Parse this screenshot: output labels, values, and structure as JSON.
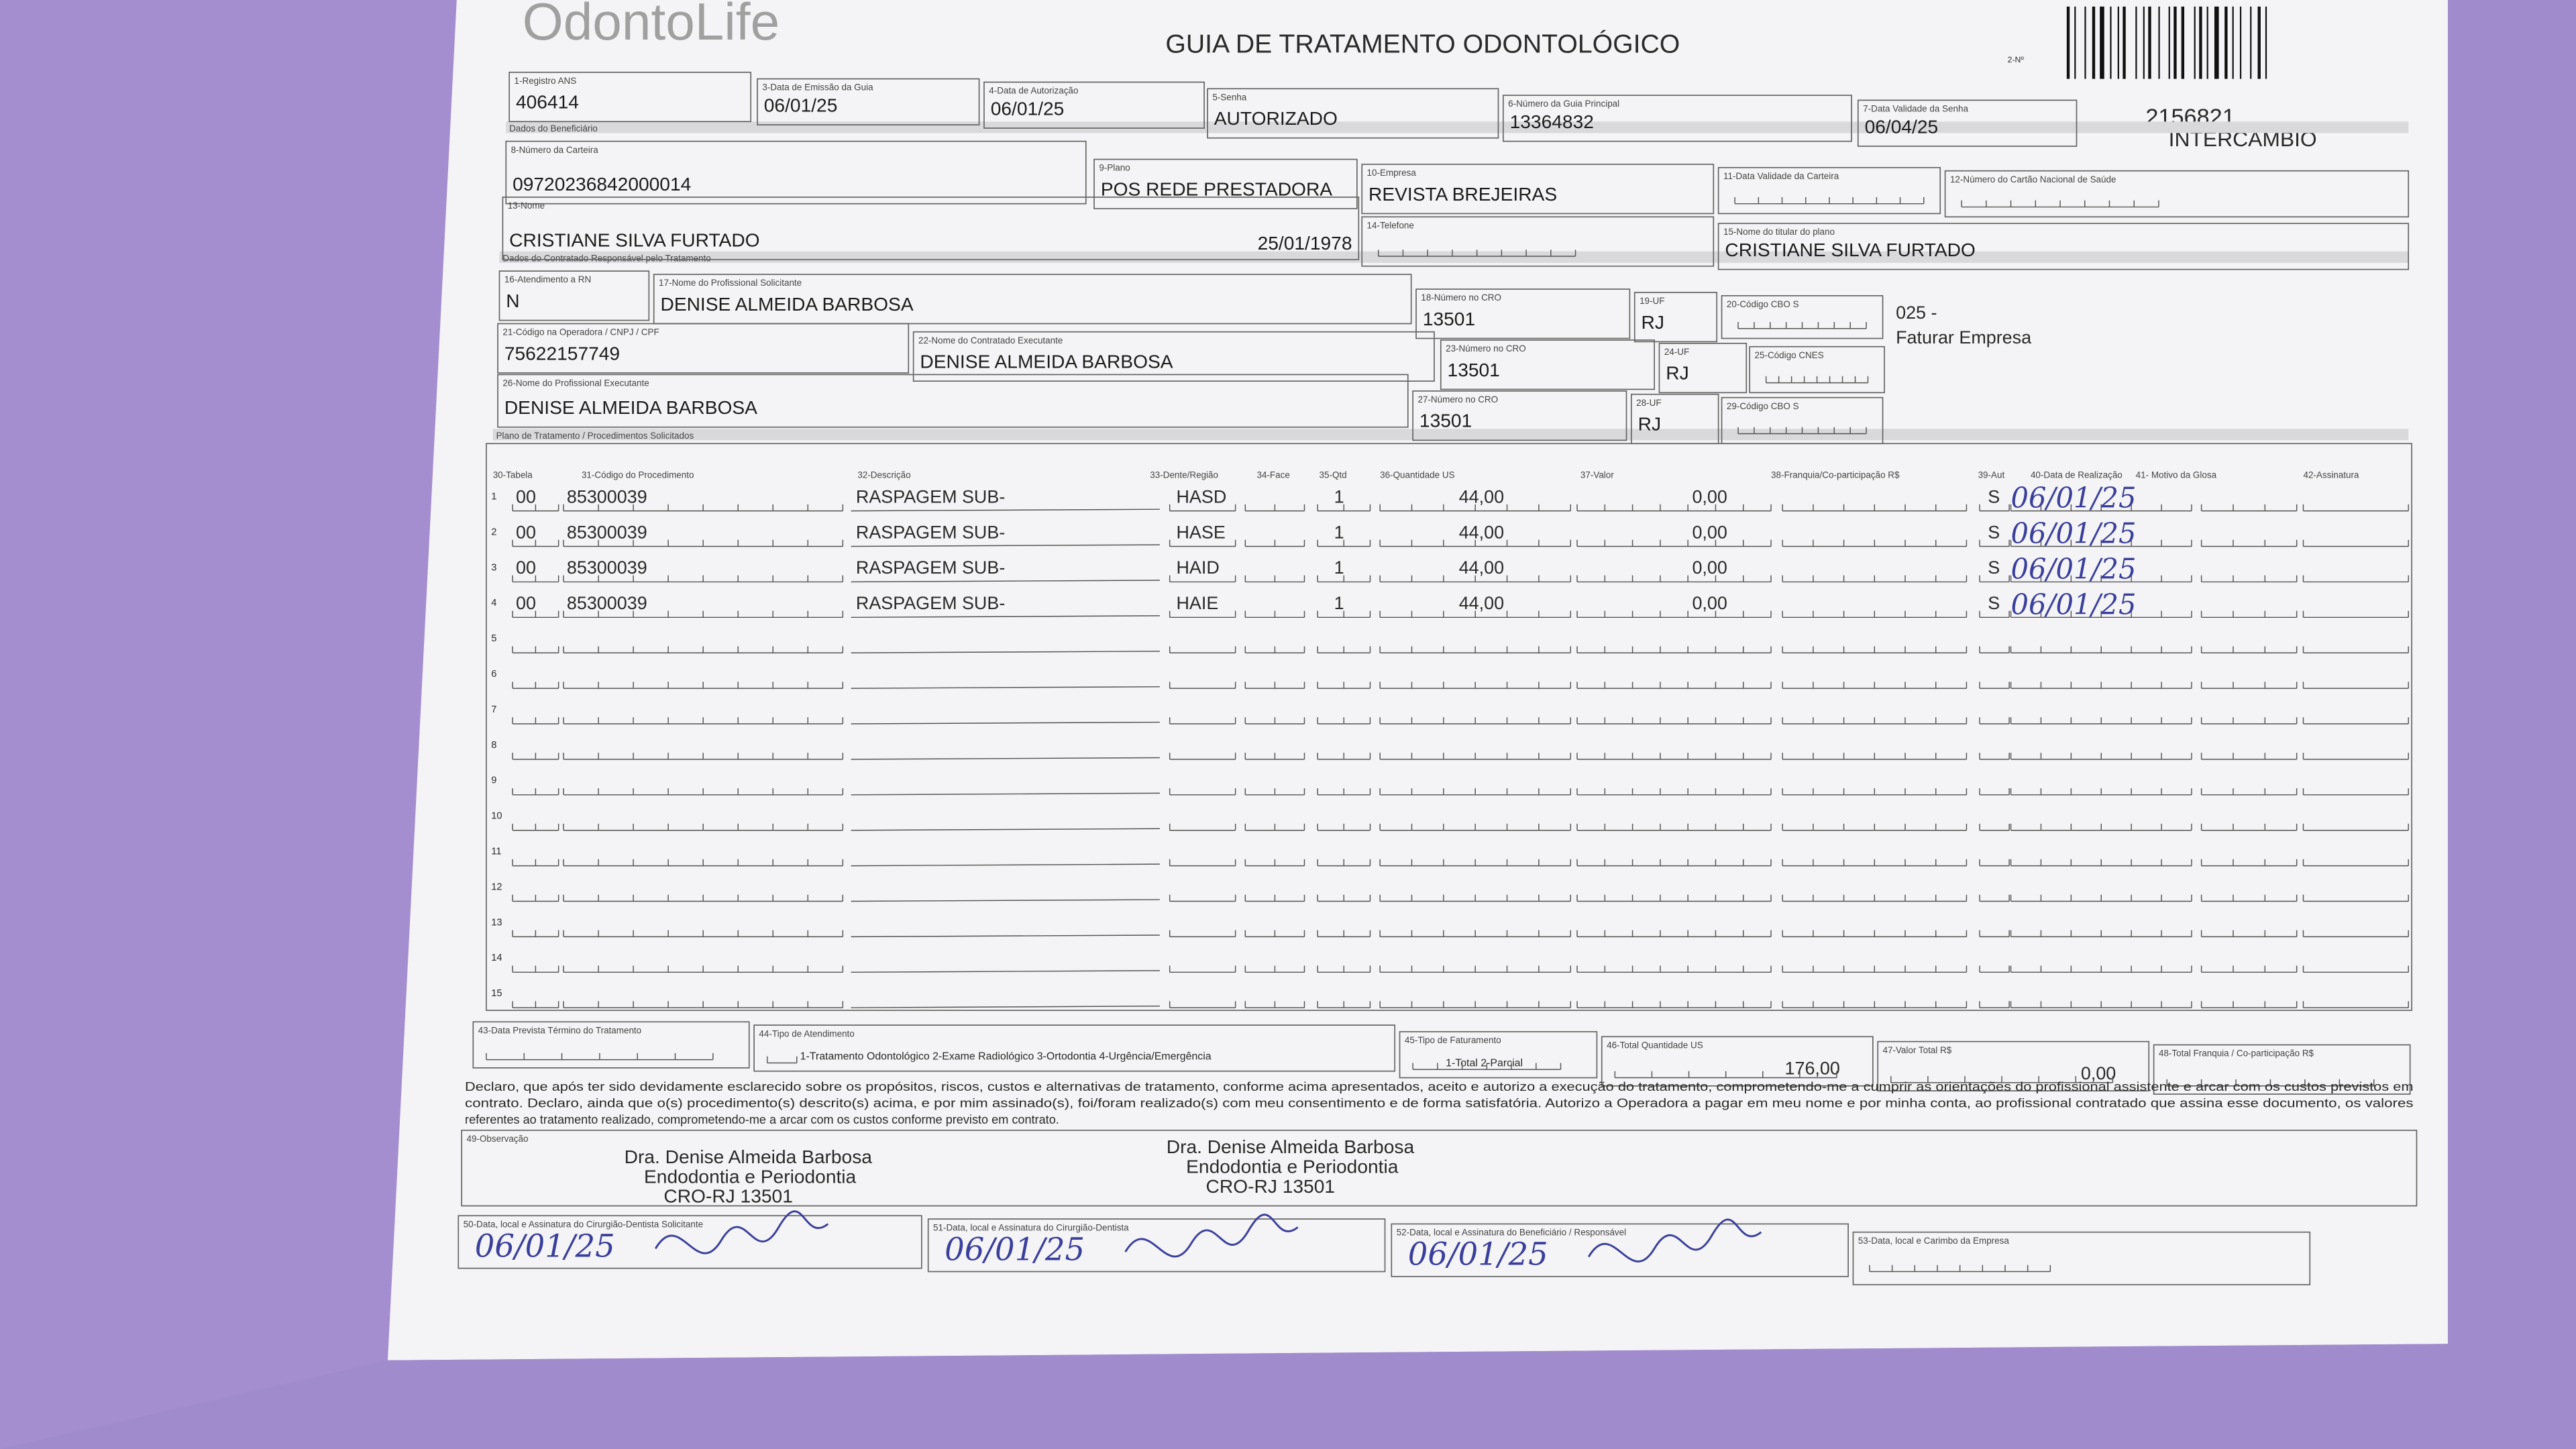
{
  "header": {
    "logo": "OdontoLife",
    "title": "GUIA DE TRATAMENTO ODONTOLÓGICO",
    "copy_no": "2-Nº",
    "guide_number": "2156821",
    "category": "INTERCÂMBIO"
  },
  "sections": [
    "Dados do Beneficiário",
    "Dados do Contratado Responsável pelo Tratamento",
    "Plano de Tratamento / Procedimentos Solicitados"
  ],
  "fields": [
    {
      "label": "1-Registro ANS",
      "value": "406414"
    },
    {
      "label": "3-Data de Emissão da Guia",
      "value": "06/01/25"
    },
    {
      "label": "4-Data de Autorização",
      "value": "06/01/25"
    },
    {
      "label": "5-Senha",
      "value": "AUTORIZADO"
    },
    {
      "label": "6-Número da Guia Principal",
      "value": "13364832"
    },
    {
      "label": "7-Data Validade da Senha",
      "value": "06/04/25"
    },
    {
      "label": "8-Número da Carteira",
      "value": "09720236842000014"
    },
    {
      "label": "9-Plano",
      "value": "POS REDE PRESTADORA"
    },
    {
      "label": "10-Empresa",
      "value": "REVISTA BREJEIRAS"
    },
    {
      "label": "11-Data Validade da Carteira"
    },
    {
      "label": "12-Número do Cartão Nacional de Saúde"
    },
    {
      "label": "13-Nome",
      "value": "CRISTIANE SILVA FURTADO",
      "extra": "25/01/1978"
    },
    {
      "label": "14-Telefone"
    },
    {
      "label": "15-Nome do titular do plano",
      "value": "CRISTIANE SILVA FURTADO"
    },
    {
      "label": "16-Atendimento a RN",
      "value": "N"
    },
    {
      "label": "17-Nome do Profissional Solicitante",
      "value": "DENISE ALMEIDA BARBOSA"
    },
    {
      "label": "18-Número no CRO",
      "value": "13501"
    },
    {
      "label": "19-UF",
      "value": "RJ"
    },
    {
      "label": "20-Código CBO S"
    },
    {
      "label": "21-Código na Operadora / CNPJ / CPF",
      "value": "75622157749"
    },
    {
      "label": "22-Nome do Contratado Executante",
      "value": "DENISE ALMEIDA BARBOSA"
    },
    {
      "label": "23-Número no CRO",
      "value": "13501"
    },
    {
      "label": "24-UF",
      "value": "RJ"
    },
    {
      "label": "25-Código CNES"
    },
    {
      "label": "26-Nome do Profissional Executante",
      "value": "DENISE ALMEIDA BARBOSA"
    },
    {
      "label": "27-Número no CRO",
      "value": "13501"
    },
    {
      "label": "28-UF",
      "value": "RJ"
    },
    {
      "label": "29-Código CBO S"
    }
  ],
  "note": {
    "code": "025 -",
    "text": "Faturar Empresa"
  },
  "procedures": {
    "columns": [
      "30-Tabela",
      "31-Código do Procedimento",
      "32-Descrição",
      "33-Dente/Região",
      "34-Face",
      "35-Qtd",
      "36-Quantidade US",
      "37-Valor",
      "38-Franquia/Co-participação R$",
      "39-Aut",
      "40-Data de Realização",
      "41- Motivo da Glosa",
      "42-Assinatura"
    ],
    "rows": [
      {
        "number": "1",
        "table": "00",
        "code": "85300039",
        "description": "RASPAGEM SUB-",
        "tooth": "HASD",
        "qty": "1",
        "us": "44,00",
        "value": "0,00",
        "aut": "S",
        "date": "06/01/25"
      },
      {
        "number": "2",
        "table": "00",
        "code": "85300039",
        "description": "RASPAGEM SUB-",
        "tooth": "HASE",
        "qty": "1",
        "us": "44,00",
        "value": "0,00",
        "aut": "S",
        "date": "06/01/25"
      },
      {
        "number": "3",
        "table": "00",
        "code": "85300039",
        "description": "RASPAGEM SUB-",
        "tooth": "HAID",
        "qty": "1",
        "us": "44,00",
        "value": "0,00",
        "aut": "S",
        "date": "06/01/25"
      },
      {
        "number": "4",
        "table": "00",
        "code": "85300039",
        "description": "RASPAGEM SUB-",
        "tooth": "HAIE",
        "qty": "1",
        "us": "44,00",
        "value": "0,00",
        "aut": "S",
        "date": "06/01/25"
      },
      {
        "number": "5"
      },
      {
        "number": "6"
      },
      {
        "number": "7"
      },
      {
        "number": "8"
      },
      {
        "number": "9"
      },
      {
        "number": "10"
      },
      {
        "number": "11"
      },
      {
        "number": "12"
      },
      {
        "number": "13"
      },
      {
        "number": "14"
      },
      {
        "number": "15"
      }
    ]
  },
  "totals": [
    {
      "label": "43-Data Prevista Término do Tratamento"
    },
    {
      "label": "44-Tipo de Atendimento",
      "options": "1-Tratamento Odontológico  2-Exame Radiológico  3-Ortodontia  4-Urgência/Emergência"
    },
    {
      "label": "45-Tipo de Faturamento",
      "options": "1-Total  2-Parcial"
    },
    {
      "label": "46-Total Quantidade US",
      "value": "176,00"
    },
    {
      "label": "47-Valor Total R$",
      "value": "0,00"
    },
    {
      "label": "48-Total Franquia / Co-participação R$"
    }
  ],
  "declaration": [
    "Declaro, que após ter sido devidamente esclarecido sobre os propósitos, riscos, custos e alternativas de tratamento, conforme acima apresentados, aceito e autorizo a execução do tratamento, comprometendo-me a cumprir as orientações do profissional assistente e arcar com os custos previstos em",
    "contrato. Declaro, ainda que o(s) procedimento(s) descrito(s) acima, e por mim assinado(s), foi/foram realizado(s) com meu consentimento e de forma satisfatória. Autorizo a Operadora a pagar em meu nome e por minha conta, ao profissional contratado que assina esse documento, os valores",
    "referentes ao tratamento realizado, comprometendo-me a arcar com os custos conforme previsto em contrato."
  ],
  "observation_label": "49-Observação",
  "stamps": [
    [
      "Dra. Denise Almeida Barbosa",
      "Endodontia e Periodontia",
      "CRO-RJ 13501"
    ],
    [
      "Dra. Denise Almeida Barbosa",
      "Endodontia e Periodontia",
      "CRO-RJ 13501"
    ]
  ],
  "signatures": [
    {
      "label": "50-Data, local e Assinatura do Cirurgião-Dentista Solicitante",
      "date": "06/01/25"
    },
    {
      "label": "51-Data, local e Assinatura do Cirurgião-Dentista",
      "date": "06/01/25"
    },
    {
      "label": "52-Data, local e Assinatura do Beneficiário / Responsável",
      "date": "06/01/25"
    },
    {
      "label": "53-Data, local e Carimbo da Empresa"
    }
  ]
}
